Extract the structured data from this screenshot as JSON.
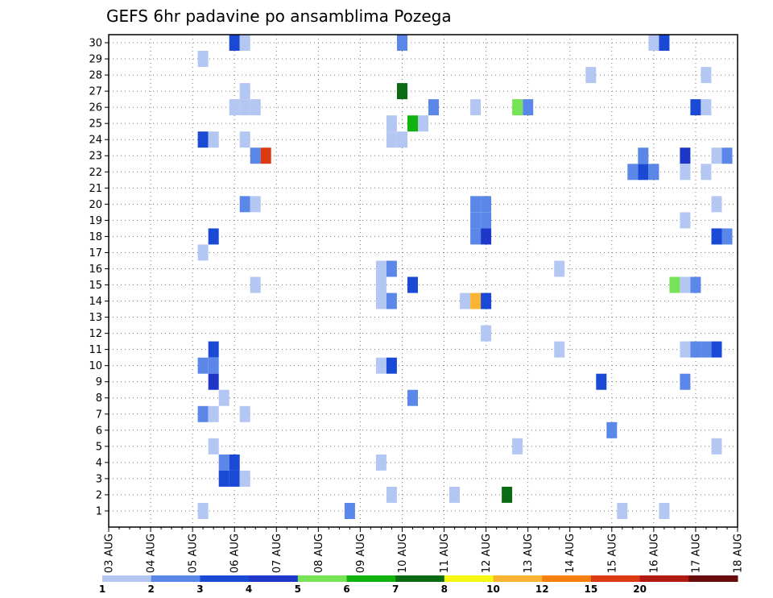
{
  "chart_data": {
    "type": "heatmap",
    "title": "GEFS 6hr padavine po ansamblima Pozega",
    "xlabel": "",
    "ylabel": "",
    "x_ticks": [
      "03 AUG",
      "04 AUG",
      "05 AUG",
      "06 AUG",
      "07 AUG",
      "08 AUG",
      "09 AUG",
      "10 AUG",
      "11 AUG",
      "12 AUG",
      "13 AUG",
      "14 AUG",
      "15 AUG",
      "16 AUG",
      "17 AUG",
      "18 AUG"
    ],
    "y_ticks": [
      1,
      2,
      3,
      4,
      5,
      6,
      7,
      8,
      9,
      10,
      11,
      12,
      13,
      14,
      15,
      16,
      17,
      18,
      19,
      20,
      21,
      22,
      23,
      24,
      25,
      26,
      27,
      28,
      29,
      30
    ],
    "x_range": [
      "03 AUG 00Z",
      "18 AUG 00Z"
    ],
    "x_step": "6hr",
    "y_range": [
      0,
      30
    ],
    "grid": true,
    "colorbar": {
      "labels": [
        "1",
        "2",
        "3",
        "4",
        "5",
        "6",
        "7",
        "8",
        "10",
        "12",
        "15",
        "20"
      ],
      "colors": [
        "#b4c7f2",
        "#5b87e8",
        "#1a49d6",
        "#1f37c8",
        "#77e458",
        "#11b30f",
        "#0b6b12",
        "#f7f714",
        "#f8b534",
        "#f77f0e",
        "#dc3a13",
        "#b01a12",
        "#6b0b0b"
      ]
    },
    "cells": [
      {
        "x": "06 AUG 00Z",
        "member": 30,
        "value": 3.5
      },
      {
        "x": "06 AUG 06Z",
        "member": 30,
        "value": 1.5
      },
      {
        "x": "10 AUG 00Z",
        "member": 30,
        "value": 2.5
      },
      {
        "x": "16 AUG 00Z",
        "member": 30,
        "value": 1.5
      },
      {
        "x": "16 AUG 06Z",
        "member": 30,
        "value": 3.5
      },
      {
        "x": "05 AUG 06Z",
        "member": 29,
        "value": 1.5
      },
      {
        "x": "14 AUG 12Z",
        "member": 28,
        "value": 1.5
      },
      {
        "x": "17 AUG 06Z",
        "member": 28,
        "value": 1.5
      },
      {
        "x": "06 AUG 06Z",
        "member": 27,
        "value": 1.5
      },
      {
        "x": "10 AUG 00Z",
        "member": 27,
        "value": 7.5
      },
      {
        "x": "06 AUG 00Z",
        "member": 26,
        "value": 1.5
      },
      {
        "x": "06 AUG 06Z",
        "member": 26,
        "value": 1.5
      },
      {
        "x": "06 AUG 12Z",
        "member": 26,
        "value": 1.5
      },
      {
        "x": "10 AUG 18Z",
        "member": 26,
        "value": 2.5
      },
      {
        "x": "11 AUG 18Z",
        "member": 26,
        "value": 1.5
      },
      {
        "x": "12 AUG 18Z",
        "member": 26,
        "value": 5.5
      },
      {
        "x": "13 AUG 00Z",
        "member": 26,
        "value": 2.5
      },
      {
        "x": "17 AUG 00Z",
        "member": 26,
        "value": 3.5
      },
      {
        "x": "17 AUG 06Z",
        "member": 26,
        "value": 1.5
      },
      {
        "x": "09 AUG 18Z",
        "member": 25,
        "value": 1.5
      },
      {
        "x": "10 AUG 06Z",
        "member": 25,
        "value": 6.5
      },
      {
        "x": "10 AUG 12Z",
        "member": 25,
        "value": 1.5
      },
      {
        "x": "05 AUG 06Z",
        "member": 24,
        "value": 3.5
      },
      {
        "x": "05 AUG 12Z",
        "member": 24,
        "value": 1.5
      },
      {
        "x": "06 AUG 06Z",
        "member": 24,
        "value": 1.5
      },
      {
        "x": "09 AUG 18Z",
        "member": 24,
        "value": 1.5
      },
      {
        "x": "10 AUG 00Z",
        "member": 24,
        "value": 1.5
      },
      {
        "x": "06 AUG 12Z",
        "member": 23,
        "value": 2.5
      },
      {
        "x": "06 AUG 18Z",
        "member": 23,
        "value": 15.5
      },
      {
        "x": "15 AUG 18Z",
        "member": 23,
        "value": 2.5
      },
      {
        "x": "16 AUG 18Z",
        "member": 23,
        "value": 4.5
      },
      {
        "x": "17 AUG 12Z",
        "member": 23,
        "value": 1.5
      },
      {
        "x": "17 AUG 18Z",
        "member": 23,
        "value": 2.5
      },
      {
        "x": "15 AUG 12Z",
        "member": 22,
        "value": 2.5
      },
      {
        "x": "15 AUG 18Z",
        "member": 22,
        "value": 3.5
      },
      {
        "x": "16 AUG 00Z",
        "member": 22,
        "value": 2.5
      },
      {
        "x": "16 AUG 18Z",
        "member": 22,
        "value": 1.5
      },
      {
        "x": "17 AUG 06Z",
        "member": 22,
        "value": 1.5
      },
      {
        "x": "06 AUG 06Z",
        "member": 20,
        "value": 2.5
      },
      {
        "x": "06 AUG 12Z",
        "member": 20,
        "value": 1.5
      },
      {
        "x": "11 AUG 18Z",
        "member": 20,
        "value": 2.5
      },
      {
        "x": "12 AUG 00Z",
        "member": 20,
        "value": 2.5
      },
      {
        "x": "16 AUG 18Z",
        "member": 19,
        "value": 1.5
      },
      {
        "x": "17 AUG 12Z",
        "member": 20,
        "value": 1.5
      },
      {
        "x": "11 AUG 18Z",
        "member": 19,
        "value": 2.5
      },
      {
        "x": "12 AUG 00Z",
        "member": 19,
        "value": 2.5
      },
      {
        "x": "05 AUG 12Z",
        "member": 18,
        "value": 3.5
      },
      {
        "x": "11 AUG 18Z",
        "member": 18,
        "value": 2.5
      },
      {
        "x": "12 AUG 00Z",
        "member": 18,
        "value": 4.5
      },
      {
        "x": "17 AUG 12Z",
        "member": 18,
        "value": 3.5
      },
      {
        "x": "17 AUG 18Z",
        "member": 18,
        "value": 2.5
      },
      {
        "x": "05 AUG 06Z",
        "member": 17,
        "value": 1.5
      },
      {
        "x": "09 AUG 12Z",
        "member": 16,
        "value": 1.5
      },
      {
        "x": "09 AUG 18Z",
        "member": 16,
        "value": 2.5
      },
      {
        "x": "13 AUG 18Z",
        "member": 16,
        "value": 1.5
      },
      {
        "x": "06 AUG 12Z",
        "member": 15,
        "value": 1.5
      },
      {
        "x": "09 AUG 12Z",
        "member": 15,
        "value": 1.5
      },
      {
        "x": "10 AUG 06Z",
        "member": 15,
        "value": 3.5
      },
      {
        "x": "16 AUG 12Z",
        "member": 15,
        "value": 5.5
      },
      {
        "x": "16 AUG 18Z",
        "member": 15,
        "value": 1.5
      },
      {
        "x": "17 AUG 00Z",
        "member": 15,
        "value": 2.5
      },
      {
        "x": "09 AUG 12Z",
        "member": 14,
        "value": 1.5
      },
      {
        "x": "09 AUG 18Z",
        "member": 14,
        "value": 2.5
      },
      {
        "x": "11 AUG 12Z",
        "member": 14,
        "value": 1.5
      },
      {
        "x": "11 AUG 18Z",
        "member": 14,
        "value": 11
      },
      {
        "x": "12 AUG 00Z",
        "member": 14,
        "value": 3.5
      },
      {
        "x": "12 AUG 00Z",
        "member": 12,
        "value": 1.5
      },
      {
        "x": "05 AUG 12Z",
        "member": 11,
        "value": 3.5
      },
      {
        "x": "13 AUG 18Z",
        "member": 11,
        "value": 1.5
      },
      {
        "x": "16 AUG 18Z",
        "member": 11,
        "value": 1.5
      },
      {
        "x": "17 AUG 00Z",
        "member": 11,
        "value": 2.5
      },
      {
        "x": "17 AUG 06Z",
        "member": 11,
        "value": 2.5
      },
      {
        "x": "17 AUG 12Z",
        "member": 11,
        "value": 3.5
      },
      {
        "x": "05 AUG 06Z",
        "member": 10,
        "value": 2.5
      },
      {
        "x": "05 AUG 12Z",
        "member": 10,
        "value": 2.5
      },
      {
        "x": "09 AUG 12Z",
        "member": 10,
        "value": 1.5
      },
      {
        "x": "09 AUG 18Z",
        "member": 10,
        "value": 3.5
      },
      {
        "x": "05 AUG 12Z",
        "member": 9,
        "value": 4.5
      },
      {
        "x": "14 AUG 18Z",
        "member": 9,
        "value": 3.5
      },
      {
        "x": "16 AUG 18Z",
        "member": 9,
        "value": 2.5
      },
      {
        "x": "05 AUG 18Z",
        "member": 8,
        "value": 1.5
      },
      {
        "x": "10 AUG 06Z",
        "member": 8,
        "value": 2.5
      },
      {
        "x": "05 AUG 06Z",
        "member": 7,
        "value": 2.5
      },
      {
        "x": "05 AUG 12Z",
        "member": 7,
        "value": 1.5
      },
      {
        "x": "06 AUG 06Z",
        "member": 7,
        "value": 1.5
      },
      {
        "x": "15 AUG 00Z",
        "member": 6,
        "value": 2.5
      },
      {
        "x": "05 AUG 12Z",
        "member": 5,
        "value": 1.5
      },
      {
        "x": "12 AUG 18Z",
        "member": 5,
        "value": 1.5
      },
      {
        "x": "17 AUG 12Z",
        "member": 5,
        "value": 1.5
      },
      {
        "x": "05 AUG 18Z",
        "member": 4,
        "value": 2.5
      },
      {
        "x": "06 AUG 00Z",
        "member": 4,
        "value": 3.5
      },
      {
        "x": "09 AUG 12Z",
        "member": 4,
        "value": 1.5
      },
      {
        "x": "05 AUG 18Z",
        "member": 3,
        "value": 3.5
      },
      {
        "x": "06 AUG 00Z",
        "member": 3,
        "value": 3.5
      },
      {
        "x": "06 AUG 06Z",
        "member": 3,
        "value": 1.5
      },
      {
        "x": "09 AUG 18Z",
        "member": 2,
        "value": 1.5
      },
      {
        "x": "11 AUG 06Z",
        "member": 2,
        "value": 1.5
      },
      {
        "x": "12 AUG 12Z",
        "member": 2,
        "value": 7.5
      },
      {
        "x": "05 AUG 06Z",
        "member": 1,
        "value": 1.5
      },
      {
        "x": "08 AUG 18Z",
        "member": 1,
        "value": 2.5
      },
      {
        "x": "15 AUG 06Z",
        "member": 1,
        "value": 1.5
      },
      {
        "x": "16 AUG 06Z",
        "member": 1,
        "value": 1.5
      }
    ]
  }
}
